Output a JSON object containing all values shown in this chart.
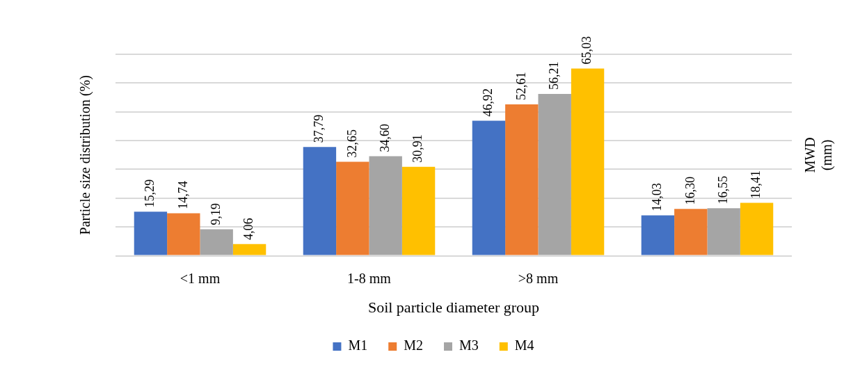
{
  "chart_data": {
    "type": "bar",
    "xlabel": "Soil particle diameter group",
    "ylabel": "Particle size distribution (%)",
    "y2label": "MWD (mm)",
    "categories": [
      "<1 mm",
      "1-8 mm",
      ">8 mm",
      null
    ],
    "series": [
      {
        "name": "M1",
        "color": "#4472c4",
        "values": [
          15.29,
          37.79,
          46.92,
          14.03
        ],
        "value_labels": [
          "15,29",
          "37,79",
          "46,92",
          "14,03"
        ]
      },
      {
        "name": "M2",
        "color": "#ed7d31",
        "values": [
          14.74,
          32.65,
          52.61,
          16.3
        ],
        "value_labels": [
          "14,74",
          "32,65",
          "52,61",
          "16,30"
        ]
      },
      {
        "name": "M3",
        "color": "#a5a5a5",
        "values": [
          9.19,
          34.6,
          56.21,
          16.55
        ],
        "value_labels": [
          "9,19",
          "34,60",
          "56,21",
          "16,55"
        ]
      },
      {
        "name": "M4",
        "color": "#ffc000",
        "values": [
          4.06,
          30.91,
          65.03,
          18.41
        ],
        "value_labels": [
          "4,06",
          "30,91",
          "65,03",
          "18,41"
        ]
      }
    ],
    "ylim": [
      0,
      70
    ],
    "yticks": [
      {
        "value": 0,
        "label": null
      },
      {
        "value": 10,
        "label": null
      },
      {
        "value": 20,
        "label": null
      },
      {
        "value": 30,
        "label": null
      },
      {
        "value": 40,
        "label": null
      },
      {
        "value": 50,
        "label": null
      },
      {
        "value": 60,
        "label": null
      },
      {
        "value": 70,
        "label": null
      }
    ],
    "tick_labels": "x",
    "grid": "y",
    "legend": "bottom"
  }
}
